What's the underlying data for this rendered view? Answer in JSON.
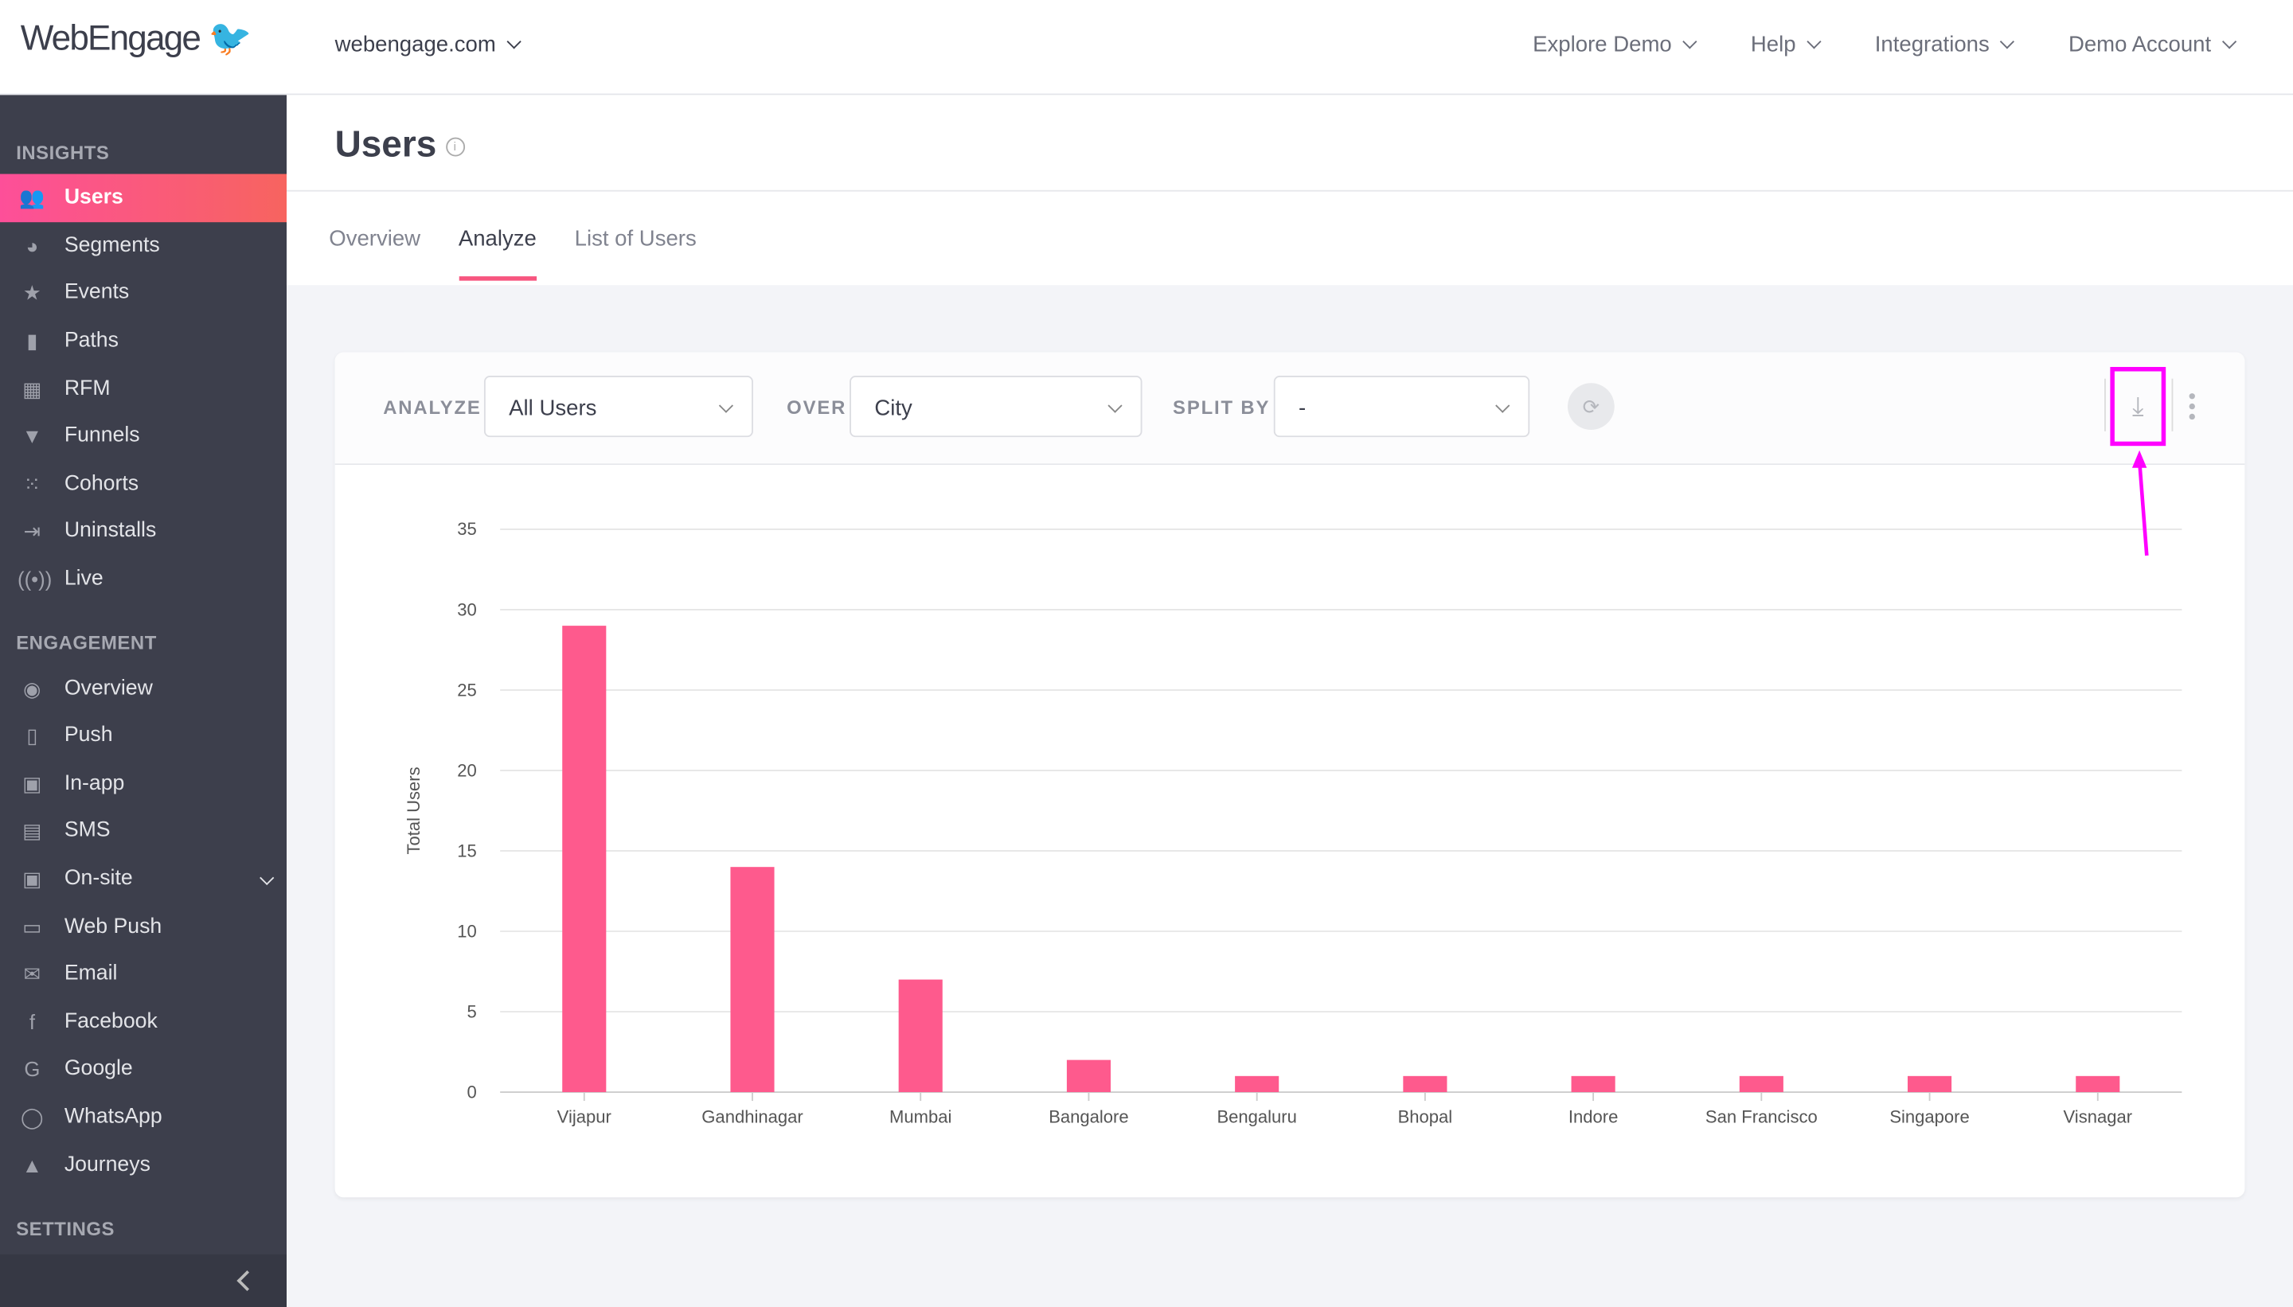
{
  "topbar": {
    "logo": "WebEngage",
    "domain": "webengage.com",
    "nav": [
      "Explore Demo",
      "Help",
      "Integrations",
      "Demo Account"
    ]
  },
  "sidebar": {
    "sections": [
      {
        "title": "INSIGHTS",
        "items": [
          {
            "label": "Users",
            "icon": "users-icon",
            "active": true
          },
          {
            "label": "Segments",
            "icon": "pie-icon"
          },
          {
            "label": "Events",
            "icon": "star-icon"
          },
          {
            "label": "Paths",
            "icon": "bar-chart-icon"
          },
          {
            "label": "RFM",
            "icon": "grid-icon"
          },
          {
            "label": "Funnels",
            "icon": "funnel-icon"
          },
          {
            "label": "Cohorts",
            "icon": "cohort-icon"
          },
          {
            "label": "Uninstalls",
            "icon": "uninstall-icon"
          },
          {
            "label": "Live",
            "icon": "live-icon"
          }
        ]
      },
      {
        "title": "ENGAGEMENT",
        "items": [
          {
            "label": "Overview",
            "icon": "eye-icon"
          },
          {
            "label": "Push",
            "icon": "push-icon"
          },
          {
            "label": "In-app",
            "icon": "inapp-icon"
          },
          {
            "label": "SMS",
            "icon": "sms-icon"
          },
          {
            "label": "On-site",
            "icon": "onsite-icon",
            "expand": true
          },
          {
            "label": "Web Push",
            "icon": "webpush-icon"
          },
          {
            "label": "Email",
            "icon": "email-icon"
          },
          {
            "label": "Facebook",
            "icon": "facebook-icon"
          },
          {
            "label": "Google",
            "icon": "google-icon"
          },
          {
            "label": "WhatsApp",
            "icon": "whatsapp-icon"
          },
          {
            "label": "Journeys",
            "icon": "rocket-icon"
          }
        ]
      },
      {
        "title": "SETTINGS",
        "items": []
      }
    ]
  },
  "page": {
    "title": "Users",
    "tabs": [
      "Overview",
      "Analyze",
      "List of Users"
    ],
    "active_tab": "Analyze"
  },
  "controls": {
    "analyze_label": "ANALYZE",
    "analyze_value": "All Users",
    "over_label": "OVER",
    "over_value": "City",
    "split_label": "SPLIT BY",
    "split_value": "-"
  },
  "colors": {
    "accent": "#fe5a8d",
    "highlight": "#ff00ff"
  },
  "chart_data": {
    "type": "bar",
    "title": "",
    "xlabel": "",
    "ylabel": "Total Users",
    "ylim": [
      0,
      35
    ],
    "yticks": [
      0,
      5,
      10,
      15,
      20,
      25,
      30,
      35
    ],
    "grid": true,
    "categories": [
      "Vijapur",
      "Gandhinagar",
      "Mumbai",
      "Bangalore",
      "Bengaluru",
      "Bhopal",
      "Indore",
      "San Francisco",
      "Singapore",
      "Visnagar"
    ],
    "values": [
      29,
      14,
      7,
      2,
      1,
      1,
      1,
      1,
      1,
      1
    ]
  }
}
